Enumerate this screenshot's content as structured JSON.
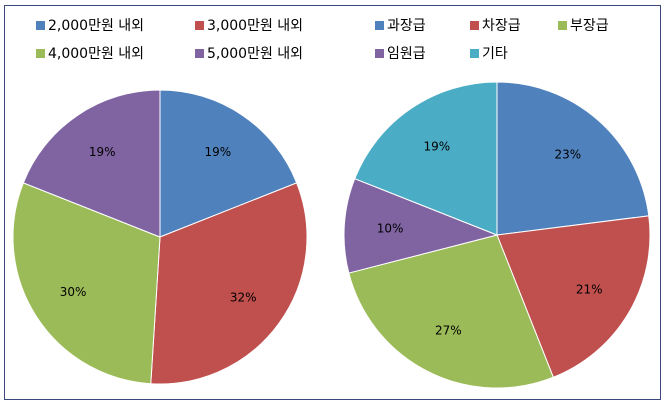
{
  "chart_data": [
    {
      "type": "pie",
      "title": "",
      "categories": [
        "2,000만원 내외",
        "3,000만원 내외",
        "4,000만원 내외",
        "5,000만원 내외"
      ],
      "values": [
        19,
        32,
        30,
        19
      ],
      "labels": [
        "19%",
        "32%",
        "30%",
        "19%"
      ],
      "colors": [
        "#4F81BD",
        "#C0504D",
        "#9BBB59",
        "#8064A2"
      ],
      "legend": "top"
    },
    {
      "type": "pie",
      "title": "",
      "categories": [
        "과장급",
        "차장급",
        "부장급",
        "임원급",
        "기타"
      ],
      "values": [
        23,
        21,
        27,
        10,
        19
      ],
      "labels": [
        "23%",
        "21%",
        "27%",
        "10%",
        "19%"
      ],
      "colors": [
        "#4F81BD",
        "#C0504D",
        "#9BBB59",
        "#8064A2",
        "#4BACC6"
      ],
      "legend": "top"
    }
  ]
}
